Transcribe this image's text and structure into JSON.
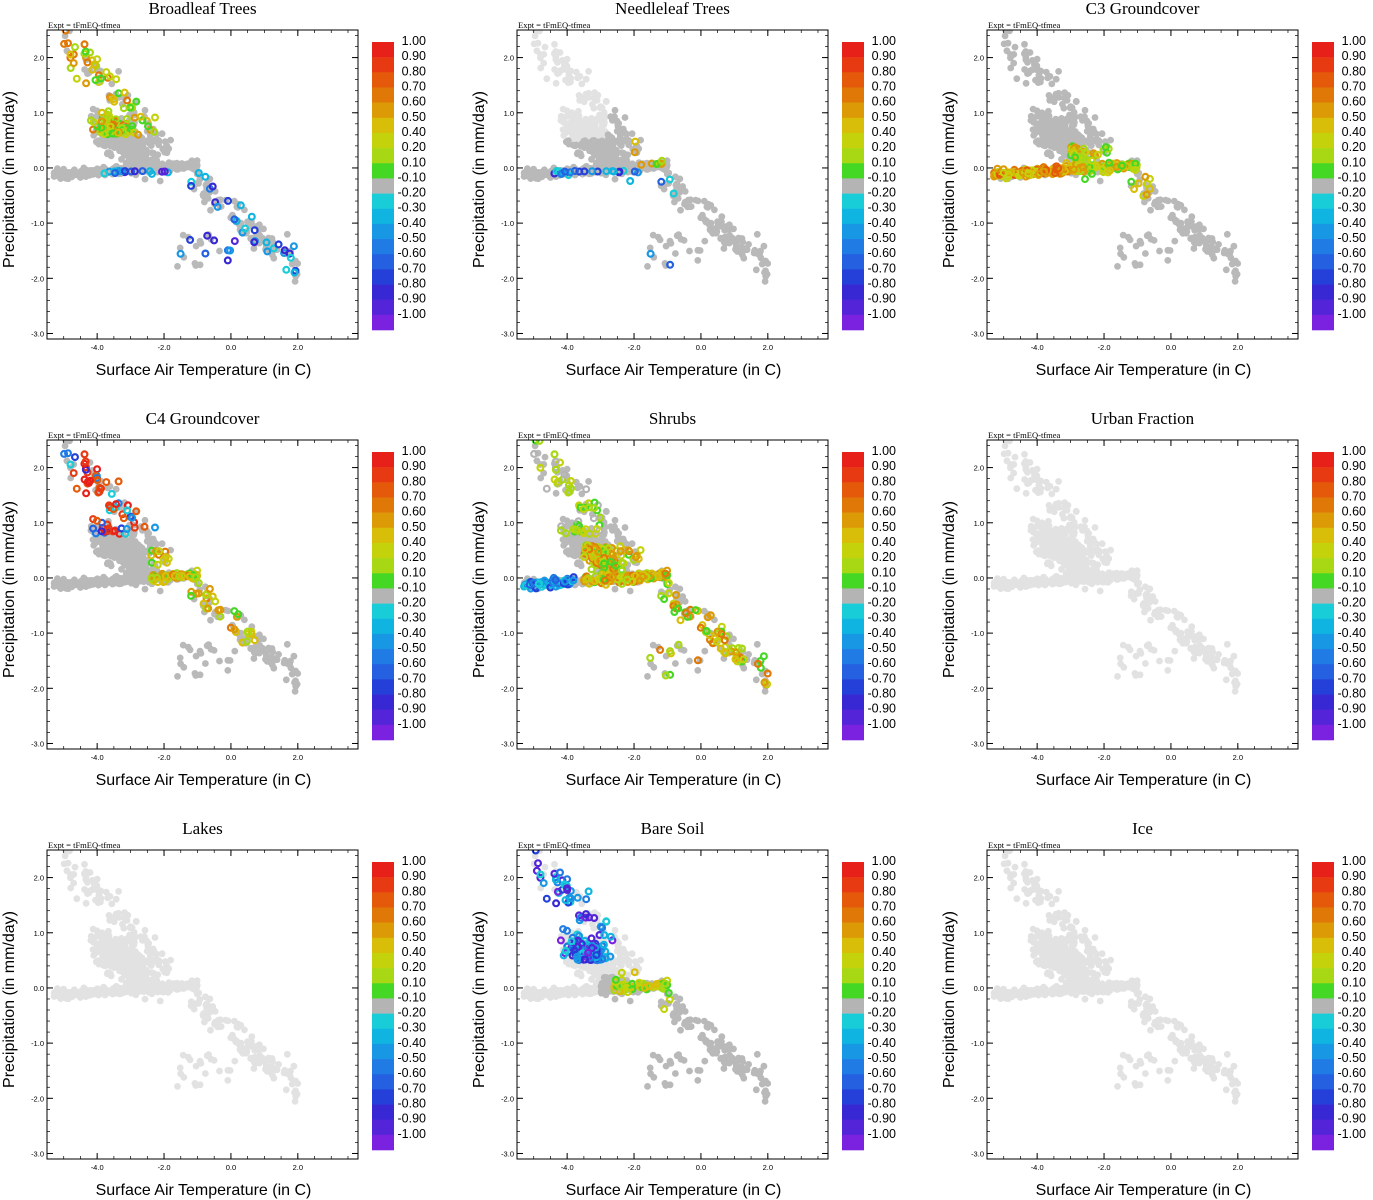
{
  "figure": {
    "experiment_label": "Expt = tFmEQ-tfmea",
    "xlabel": "Surface Air Temperature (in C)",
    "ylabel": "Precipitation (in mm/day)"
  },
  "colorbar": {
    "labels": [
      "1.00",
      "0.90",
      "0.80",
      "0.70",
      "0.60",
      "0.50",
      "0.40",
      "0.20",
      "0.10",
      "-0.10",
      "-0.20",
      "-0.30",
      "-0.40",
      "-0.50",
      "-0.60",
      "-0.70",
      "-0.80",
      "-0.90",
      "-1.00"
    ],
    "colors": [
      "#e8201a",
      "#e83a12",
      "#e45a0a",
      "#e07808",
      "#dc9a06",
      "#d8be08",
      "#c4d20c",
      "#a8d814",
      "#44d824",
      "#b4b4b4",
      "#18ccd8",
      "#10b4e0",
      "#1898e4",
      "#207ce4",
      "#2460e0",
      "#2440d8",
      "#3828d4",
      "#5424d8",
      "#7a22e0"
    ]
  },
  "chart_data": [
    {
      "type": "scatter",
      "title": "Broadleaf Trees",
      "highlight": "broadleaf",
      "xlim": [
        -5.5,
        3.8
      ],
      "ylim": [
        -3.1,
        2.5
      ],
      "xticks": [
        "-4.0",
        "-2.0",
        "0.0",
        "2.0"
      ],
      "yticks": [
        "2.0",
        "1.0",
        "0.0",
        "-1.0",
        "-2.0",
        "-3.0"
      ],
      "xlabel": "Surface Air Temperature (in C)",
      "ylabel": "Precipitation (in mm/day)"
    },
    {
      "type": "scatter",
      "title": "Needleleaf Trees",
      "highlight": "needleleaf",
      "xlim": [
        -5.5,
        3.8
      ],
      "ylim": [
        -3.1,
        2.5
      ],
      "xticks": [
        "-4.0",
        "-2.0",
        "0.0",
        "2.0"
      ],
      "yticks": [
        "2.0",
        "1.0",
        "0.0",
        "-1.0",
        "-2.0",
        "-3.0"
      ],
      "xlabel": "Surface Air Temperature (in C)",
      "ylabel": "Precipitation (in mm/day)"
    },
    {
      "type": "scatter",
      "title": "C3 Groundcover",
      "highlight": "c3",
      "xlim": [
        -5.5,
        3.8
      ],
      "ylim": [
        -3.1,
        2.5
      ],
      "xticks": [
        "-4.0",
        "-2.0",
        "0.0",
        "2.0"
      ],
      "yticks": [
        "2.0",
        "1.0",
        "0.0",
        "-1.0",
        "-2.0",
        "-3.0"
      ],
      "xlabel": "Surface Air Temperature (in C)",
      "ylabel": "Precipitation (in mm/day)"
    },
    {
      "type": "scatter",
      "title": "C4 Groundcover",
      "highlight": "c4",
      "xlim": [
        -5.5,
        3.8
      ],
      "ylim": [
        -3.1,
        2.5
      ],
      "xticks": [
        "-4.0",
        "-2.0",
        "0.0",
        "2.0"
      ],
      "yticks": [
        "2.0",
        "1.0",
        "0.0",
        "-1.0",
        "-2.0",
        "-3.0"
      ],
      "xlabel": "Surface Air Temperature (in C)",
      "ylabel": "Precipitation (in mm/day)"
    },
    {
      "type": "scatter",
      "title": "Shrubs",
      "highlight": "shrubs",
      "xlim": [
        -5.5,
        3.8
      ],
      "ylim": [
        -3.1,
        2.5
      ],
      "xticks": [
        "-4.0",
        "-2.0",
        "0.0",
        "2.0"
      ],
      "yticks": [
        "2.0",
        "1.0",
        "0.0",
        "-1.0",
        "-2.0",
        "-3.0"
      ],
      "xlabel": "Surface Air Temperature (in C)",
      "ylabel": "Precipitation (in mm/day)"
    },
    {
      "type": "scatter",
      "title": "Urban Fraction",
      "highlight": "none",
      "xlim": [
        -5.5,
        3.8
      ],
      "ylim": [
        -3.1,
        2.5
      ],
      "xticks": [
        "-4.0",
        "-2.0",
        "0.0",
        "2.0"
      ],
      "yticks": [
        "2.0",
        "1.0",
        "0.0",
        "-1.0",
        "-2.0",
        "-3.0"
      ],
      "xlabel": "Surface Air Temperature (in C)",
      "ylabel": "Precipitation (in mm/day)"
    },
    {
      "type": "scatter",
      "title": "Lakes",
      "highlight": "none",
      "xlim": [
        -5.5,
        3.8
      ],
      "ylim": [
        -3.1,
        2.5
      ],
      "xticks": [
        "-4.0",
        "-2.0",
        "0.0",
        "2.0"
      ],
      "yticks": [
        "2.0",
        "1.0",
        "0.0",
        "-1.0",
        "-2.0",
        "-3.0"
      ],
      "xlabel": "Surface Air Temperature (in C)",
      "ylabel": "Precipitation (in mm/day)"
    },
    {
      "type": "scatter",
      "title": "Bare Soil",
      "highlight": "baresoil",
      "xlim": [
        -5.5,
        3.8
      ],
      "ylim": [
        -3.1,
        2.5
      ],
      "xticks": [
        "-4.0",
        "-2.0",
        "0.0",
        "2.0"
      ],
      "yticks": [
        "2.0",
        "1.0",
        "0.0",
        "-1.0",
        "-2.0",
        "-3.0"
      ],
      "xlabel": "Surface Air Temperature (in C)",
      "ylabel": "Precipitation (in mm/day)"
    },
    {
      "type": "scatter",
      "title": "Ice",
      "highlight": "none",
      "xlim": [
        -5.5,
        3.8
      ],
      "ylim": [
        -3.1,
        2.5
      ],
      "xticks": [
        "-4.0",
        "-2.0",
        "0.0",
        "2.0"
      ],
      "yticks": [
        "2.0",
        "1.0",
        "0.0",
        "-1.0",
        "-2.0",
        "-3.0"
      ],
      "xlabel": "Surface Air Temperature (in C)",
      "ylabel": "Precipitation (in mm/day)"
    }
  ]
}
